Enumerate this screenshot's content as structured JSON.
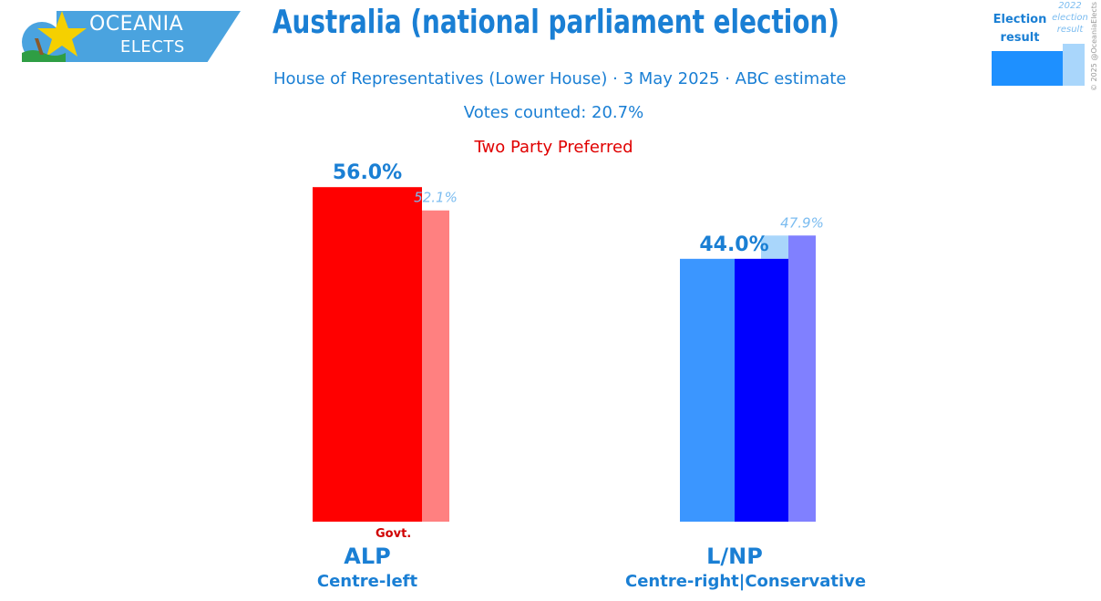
{
  "brand": {
    "line1": "OCEANIA",
    "line2": "ELECTS",
    "color": "#4aa3df"
  },
  "title": "Australia (national parliament election)",
  "subtitle": "House of Representatives (Lower House) · 3 May 2025 · ABC estimate",
  "votes_counted": "Votes counted: 20.7%",
  "metric_label": "Two Party Preferred",
  "legend": {
    "current_label": "Election result",
    "previous_label": "2022 election result"
  },
  "copyright": "© 2025 @OceaniaElects",
  "chart_data": {
    "type": "bar",
    "categories": [
      "ALP",
      "L/NP"
    ],
    "series": [
      {
        "values": [
          56.0,
          44.0
        ]
      },
      {
        "name": "2022 election result",
        "values": [
          52.1,
          47.9
        ]
      }
    ],
    "value_labels": [
      "56.0%",
      "44.0%"
    ],
    "previous_labels": [
      "52.1%",
      "47.9%"
    ],
    "ylim": [
      0,
      60
    ],
    "grid": false,
    "legend_position": "top-right",
    "colors": {
      "ALP": {
        "current": "#ff0000",
        "previous": "#ff8080"
      },
      "L/NP": {
        "current": "#0000ff",
        "current_left": "#3b96ff",
        "previous": "#8080ff",
        "previous_left": "#a9d6fb"
      }
    }
  },
  "parties": [
    {
      "name": "ALP",
      "ideology": "Centre-left",
      "badge": "Govt."
    },
    {
      "name": "L/NP",
      "ideology": "Centre-right|Conservative"
    }
  ]
}
